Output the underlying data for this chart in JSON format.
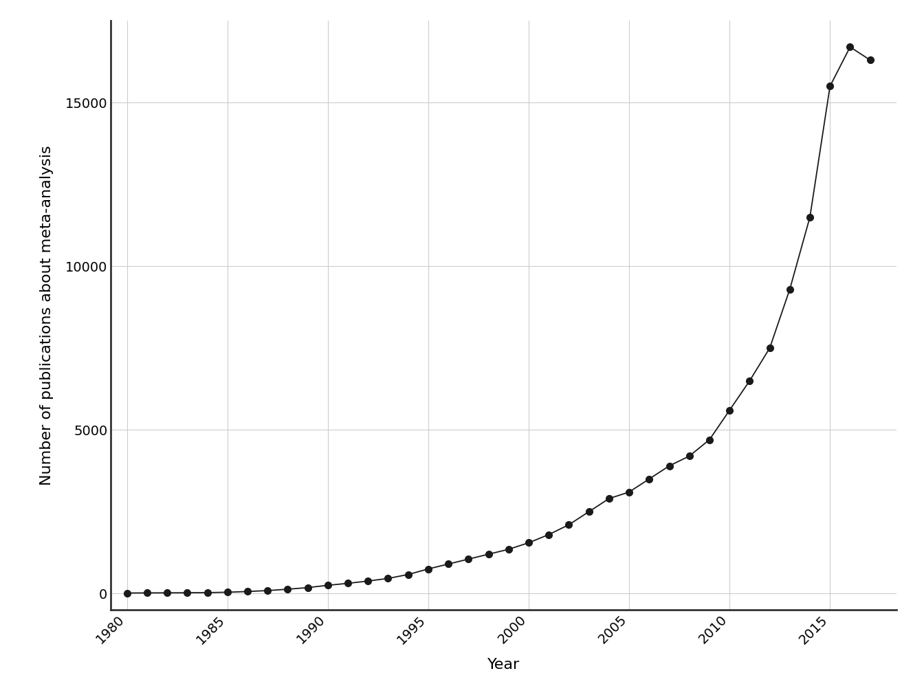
{
  "years": [
    1980,
    1981,
    1982,
    1983,
    1984,
    1985,
    1986,
    1987,
    1988,
    1989,
    1990,
    1991,
    1992,
    1993,
    1994,
    1995,
    1996,
    1997,
    1998,
    1999,
    2000,
    2001,
    2002,
    2003,
    2004,
    2005,
    2006,
    2007,
    2008,
    2009,
    2010,
    2011,
    2012,
    2013,
    2014,
    2015,
    2016,
    2017
  ],
  "values": [
    14,
    18,
    20,
    22,
    27,
    38,
    60,
    89,
    130,
    180,
    250,
    310,
    380,
    460,
    580,
    750,
    900,
    1050,
    1200,
    1350,
    1550,
    1800,
    2100,
    2500,
    2900,
    3100,
    3500,
    3900,
    4200,
    4700,
    5600,
    6500,
    7500,
    9300,
    11500,
    15500,
    16700,
    16300
  ],
  "xlabel": "Year",
  "ylabel": "Number of publications about meta-analysis",
  "line_color": "#1a1a1a",
  "marker_color": "#1a1a1a",
  "background_color": "#ffffff",
  "grid_color": "#cccccc",
  "ylim": [
    -500,
    17500
  ],
  "xlim": [
    1979.2,
    2018.3
  ],
  "xticks": [
    1980,
    1985,
    1990,
    1995,
    2000,
    2005,
    2010,
    2015
  ],
  "yticks": [
    0,
    5000,
    10000,
    15000
  ],
  "ytick_labels": [
    "0",
    "5000",
    "10000",
    "15000"
  ],
  "axis_color": "#333333",
  "tick_fontsize": 14,
  "label_fontsize": 16,
  "marker_size": 7,
  "line_width": 1.3
}
